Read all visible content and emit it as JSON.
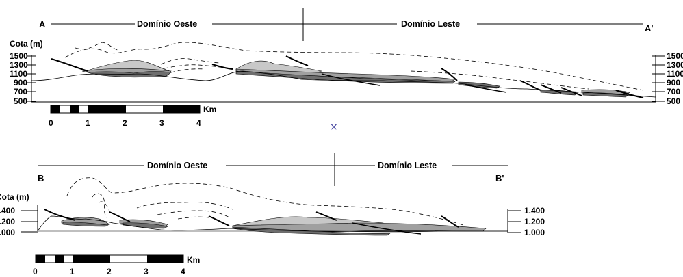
{
  "section_a": {
    "start_label": "A",
    "end_label": "A'",
    "west_domain": "Domínio Oeste",
    "east_domain": "Domínio Leste",
    "elevation_title": "Cota (m)",
    "left_ticks": [
      "1500",
      "1300",
      "1100",
      "900",
      "700",
      "500"
    ],
    "right_ticks": [
      "1500",
      "1300",
      "1100",
      "900",
      "700",
      "500"
    ],
    "scale_unit": "Km",
    "scale_ticks": [
      "0",
      "1",
      "2",
      "3",
      "4"
    ]
  },
  "section_b": {
    "start_label": "B",
    "end_label": "B'",
    "west_domain": "Domínio Oeste",
    "east_domain": "Domínio Leste",
    "elevation_title": "Cota (m)",
    "left_ticks": [
      "1.400",
      "1.200",
      "1.000"
    ],
    "right_ticks": [
      "1.400",
      "1.200",
      "1.000"
    ],
    "scale_unit": "Km",
    "scale_ticks": [
      "0",
      "1",
      "2",
      "3",
      "4"
    ]
  },
  "marker": "×",
  "colors": {
    "light_gray": "#c8c8c8",
    "mid_gray": "#a0a0a0",
    "dark_gray": "#6e6e6e",
    "line": "#000000",
    "marker": "#3a3a9a"
  }
}
